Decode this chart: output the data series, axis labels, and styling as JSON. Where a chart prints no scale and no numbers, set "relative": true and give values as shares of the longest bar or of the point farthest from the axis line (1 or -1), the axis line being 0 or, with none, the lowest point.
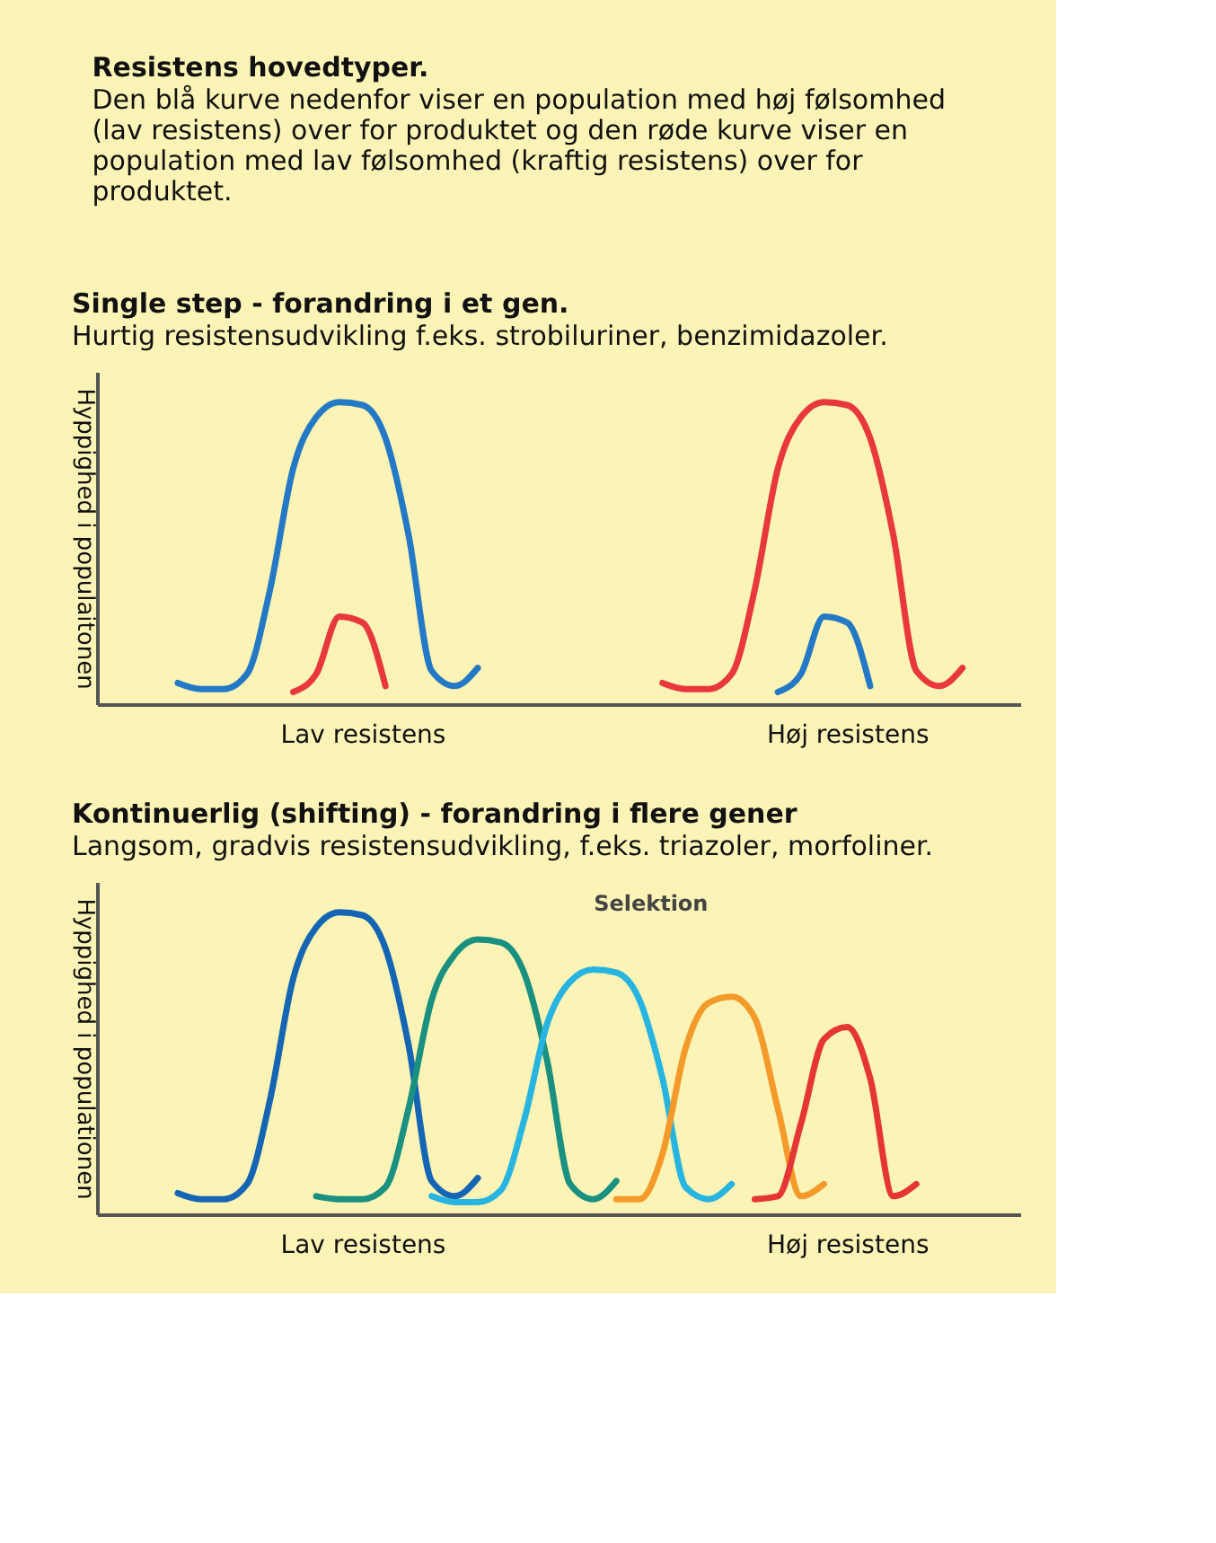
{
  "chart_data": [
    {
      "type": "other",
      "title": "Resistens hovedtyper.",
      "subtitle": "Den blå kurve nedenfor viser en population med høj følsomhed (lav resistens) over for produktet og den røde kurve viser en population med lav følsomhed (kraftig resistens) over for produktet."
    },
    {
      "type": "line",
      "relative": true,
      "title": "Single step - forandring i et gen.",
      "subtitle": "Hurtig resistensudvikling f.eks. strobiluriner, benzimidazoler.",
      "ylabel": "Hyppighed i populaitonen",
      "categories": [
        null,
        null,
        null,
        null,
        null,
        null,
        null,
        null,
        null,
        null,
        null,
        "Lav resistens",
        null,
        null,
        null,
        null,
        null,
        null,
        null,
        null,
        null,
        null,
        null,
        null,
        null,
        null,
        null,
        null,
        null,
        null,
        null,
        null,
        "Høj resistens",
        null,
        null,
        null,
        null,
        null,
        null,
        null
      ],
      "series": [
        {
          "color": "#2479c6",
          "values": [
            null,
            null,
            null,
            0.07,
            0.05,
            0.05,
            0.1,
            0.38,
            0.78,
            0.95,
            1.0,
            0.99,
            0.88,
            0.56,
            0.11,
            0.06,
            0.12,
            null,
            null,
            null,
            null,
            null,
            null,
            null,
            null,
            null,
            null,
            null,
            null,
            null,
            null,
            null,
            null,
            null,
            null,
            null,
            null,
            null,
            null,
            null
          ]
        },
        {
          "color": "#e8383b",
          "values": [
            null,
            null,
            null,
            null,
            null,
            null,
            null,
            null,
            0.04,
            0.1,
            0.29,
            0.27,
            0.06,
            null,
            null,
            null,
            null,
            null,
            null,
            null,
            null,
            null,
            null,
            null,
            null,
            null,
            null,
            null,
            null,
            null,
            null,
            null,
            null,
            null,
            null,
            null,
            null,
            null,
            null,
            null
          ]
        },
        {
          "color": "#e8383b",
          "values": [
            null,
            null,
            null,
            null,
            null,
            null,
            null,
            null,
            null,
            null,
            null,
            null,
            null,
            null,
            null,
            null,
            null,
            null,
            null,
            null,
            null,
            null,
            null,
            null,
            0.07,
            0.05,
            0.05,
            0.1,
            0.38,
            0.78,
            0.95,
            1.0,
            0.99,
            0.88,
            0.56,
            0.11,
            0.06,
            0.12,
            null,
            null
          ]
        },
        {
          "color": "#2479c6",
          "values": [
            null,
            null,
            null,
            null,
            null,
            null,
            null,
            null,
            null,
            null,
            null,
            null,
            null,
            null,
            null,
            null,
            null,
            null,
            null,
            null,
            null,
            null,
            null,
            null,
            null,
            null,
            null,
            null,
            null,
            0.04,
            0.1,
            0.29,
            0.27,
            0.06,
            null,
            null,
            null,
            null,
            null,
            null
          ]
        }
      ]
    },
    {
      "type": "line",
      "relative": true,
      "title": "Kontinuerlig (shifting) - forandring i flere gener",
      "subtitle": "Langsom, gradvis resistensudvikling, f.eks. triazoler, morfoliner.",
      "ylabel": "Hyppighed i populationen",
      "annotations": [
        "Selektion"
      ],
      "categories": [
        null,
        null,
        null,
        null,
        null,
        null,
        null,
        null,
        null,
        null,
        null,
        "Lav resistens",
        null,
        null,
        null,
        null,
        null,
        null,
        null,
        null,
        null,
        null,
        null,
        null,
        null,
        null,
        null,
        null,
        null,
        null,
        null,
        null,
        "Høj resistens",
        null,
        null,
        null,
        null,
        null,
        null,
        null
      ],
      "series": [
        {
          "color": "#1565b5",
          "values": [
            null,
            null,
            null,
            0.07,
            0.05,
            0.05,
            0.1,
            0.38,
            0.78,
            0.95,
            1.0,
            0.99,
            0.88,
            0.56,
            0.11,
            0.06,
            0.12,
            null,
            null,
            null,
            null,
            null,
            null,
            null,
            null,
            null,
            null,
            null,
            null,
            null,
            null,
            null,
            null,
            null,
            null,
            null,
            null,
            null,
            null,
            null
          ]
        },
        {
          "color": "#1a9080",
          "values": [
            null,
            null,
            null,
            null,
            null,
            null,
            null,
            null,
            null,
            0.06,
            0.05,
            0.05,
            0.09,
            0.35,
            0.71,
            0.86,
            0.91,
            0.9,
            0.8,
            0.51,
            0.1,
            0.05,
            0.11,
            null,
            null,
            null,
            null,
            null,
            null,
            null,
            null,
            null,
            null,
            null,
            null,
            null,
            null,
            null,
            null,
            null
          ]
        },
        {
          "color": "#27b4e0",
          "values": [
            null,
            null,
            null,
            null,
            null,
            null,
            null,
            null,
            null,
            null,
            null,
            null,
            null,
            null,
            0.06,
            0.04,
            0.04,
            0.08,
            0.31,
            0.63,
            0.77,
            0.81,
            0.8,
            0.71,
            0.45,
            0.09,
            0.05,
            0.1,
            null,
            null,
            null,
            null,
            null,
            null,
            null,
            null,
            null,
            null,
            null,
            null
          ]
        },
        {
          "color": "#f39a2a",
          "values": [
            null,
            null,
            null,
            null,
            null,
            null,
            null,
            null,
            null,
            null,
            null,
            null,
            null,
            null,
            null,
            null,
            null,
            null,
            null,
            null,
            null,
            null,
            0.05,
            0.05,
            0.2,
            0.55,
            0.7,
            0.72,
            0.65,
            0.35,
            0.06,
            0.1,
            null,
            null,
            null,
            null,
            null,
            null,
            null,
            null
          ]
        },
        {
          "color": "#e63535",
          "values": [
            null,
            null,
            null,
            null,
            null,
            null,
            null,
            null,
            null,
            null,
            null,
            null,
            null,
            null,
            null,
            null,
            null,
            null,
            null,
            null,
            null,
            null,
            null,
            null,
            null,
            null,
            null,
            null,
            0.05,
            0.06,
            0.3,
            0.58,
            0.62,
            0.45,
            0.06,
            0.1,
            null,
            null,
            null,
            null
          ]
        }
      ]
    }
  ]
}
